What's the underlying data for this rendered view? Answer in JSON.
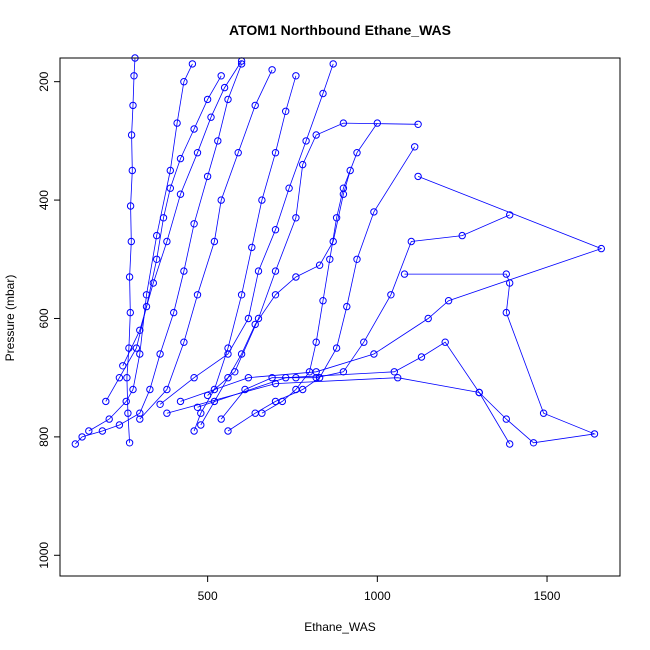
{
  "chart_data": {
    "type": "line",
    "title": "ATOM1 Northbound Ethane_WAS",
    "xlabel": "Ethane_WAS",
    "ylabel": "Pressure (mbar)",
    "xlim": [
      65,
      1715
    ],
    "ylim": [
      1035,
      160
    ],
    "y_reversed": true,
    "x_ticks": [
      500,
      1000,
      1500
    ],
    "y_ticks": [
      200,
      400,
      600,
      800,
      1000
    ],
    "x_tick_labels": [
      "500",
      "1000",
      "1500"
    ],
    "y_tick_labels": [
      "200",
      "400",
      "600",
      "800",
      "1000"
    ],
    "color": "#0000ff",
    "marker": "open-circle",
    "series": [
      {
        "values": [
          [
            270,
            810
          ],
          [
            265,
            760
          ],
          [
            262,
            700
          ],
          [
            268,
            650
          ],
          [
            272,
            590
          ],
          [
            270,
            530
          ],
          [
            275,
            470
          ],
          [
            273,
            410
          ],
          [
            278,
            350
          ],
          [
            276,
            290
          ],
          [
            280,
            240
          ],
          [
            283,
            190
          ],
          [
            286,
            160
          ]
        ]
      },
      {
        "values": [
          [
            150,
            790
          ],
          [
            210,
            770
          ],
          [
            260,
            740
          ],
          [
            280,
            720
          ],
          [
            300,
            660
          ],
          [
            320,
            560
          ],
          [
            350,
            460
          ],
          [
            390,
            350
          ],
          [
            410,
            270
          ],
          [
            430,
            200
          ],
          [
            455,
            170
          ]
        ]
      },
      {
        "values": [
          [
            460,
            790
          ],
          [
            480,
            760
          ],
          [
            520,
            720
          ],
          [
            560,
            650
          ],
          [
            600,
            560
          ],
          [
            630,
            480
          ],
          [
            660,
            400
          ],
          [
            700,
            320
          ],
          [
            730,
            250
          ],
          [
            760,
            190
          ]
        ]
      },
      {
        "values": [
          [
            540,
            770
          ],
          [
            610,
            720
          ],
          [
            690,
            700
          ],
          [
            760,
            700
          ],
          [
            820,
            700
          ],
          [
            900,
            690
          ],
          [
            960,
            640
          ],
          [
            1040,
            560
          ],
          [
            1100,
            470
          ],
          [
            1250,
            460
          ],
          [
            1390,
            425
          ]
        ]
      },
      {
        "values": [
          [
            380,
            760
          ],
          [
            700,
            710
          ],
          [
            1060,
            700
          ],
          [
            1300,
            725
          ],
          [
            1380,
            770
          ],
          [
            1460,
            810
          ],
          [
            1640,
            795
          ],
          [
            1490,
            760
          ],
          [
            1380,
            590
          ],
          [
            1390,
            540
          ],
          [
            1380,
            525
          ],
          [
            1080,
            525
          ]
        ]
      },
      {
        "values": [
          [
            420,
            740
          ],
          [
            620,
            700
          ],
          [
            820,
            690
          ],
          [
            990,
            660
          ],
          [
            1150,
            600
          ],
          [
            1210,
            570
          ],
          [
            1660,
            482
          ],
          [
            1120,
            360
          ]
        ]
      },
      {
        "values": [
          [
            470,
            750
          ],
          [
            730,
            700
          ],
          [
            1050,
            690
          ],
          [
            1130,
            665
          ],
          [
            1200,
            640
          ],
          [
            1300,
            725
          ],
          [
            1390,
            812
          ]
        ]
      },
      {
        "values": [
          [
            500,
            730
          ],
          [
            580,
            690
          ],
          [
            650,
            600
          ],
          [
            700,
            520
          ],
          [
            760,
            430
          ],
          [
            780,
            340
          ],
          [
            820,
            290
          ],
          [
            900,
            270
          ],
          [
            1120,
            272
          ]
        ]
      },
      {
        "values": [
          [
            300,
            770
          ],
          [
            380,
            720
          ],
          [
            430,
            640
          ],
          [
            470,
            560
          ],
          [
            520,
            470
          ],
          [
            540,
            400
          ],
          [
            590,
            320
          ],
          [
            640,
            240
          ],
          [
            690,
            180
          ]
        ]
      },
      {
        "values": [
          [
            360,
            745
          ],
          [
            460,
            700
          ],
          [
            560,
            660
          ],
          [
            620,
            600
          ],
          [
            650,
            520
          ],
          [
            700,
            450
          ],
          [
            740,
            380
          ],
          [
            790,
            300
          ],
          [
            840,
            220
          ],
          [
            870,
            170
          ]
        ]
      },
      {
        "values": [
          [
            110,
            812
          ],
          [
            130,
            800
          ],
          [
            190,
            790
          ],
          [
            240,
            780
          ],
          [
            300,
            760
          ],
          [
            330,
            720
          ],
          [
            360,
            660
          ],
          [
            400,
            590
          ],
          [
            430,
            520
          ],
          [
            460,
            440
          ],
          [
            500,
            360
          ],
          [
            530,
            300
          ],
          [
            560,
            230
          ],
          [
            600,
            170
          ]
        ]
      },
      {
        "values": [
          [
            560,
            790
          ],
          [
            640,
            760
          ],
          [
            700,
            740
          ],
          [
            780,
            720
          ],
          [
            830,
            700
          ],
          [
            880,
            650
          ],
          [
            910,
            580
          ],
          [
            940,
            500
          ],
          [
            990,
            420
          ],
          [
            1110,
            310
          ]
        ]
      },
      {
        "values": [
          [
            250,
            680
          ],
          [
            300,
            620
          ],
          [
            340,
            540
          ],
          [
            380,
            470
          ],
          [
            420,
            390
          ],
          [
            470,
            320
          ],
          [
            510,
            260
          ],
          [
            550,
            210
          ],
          [
            600,
            165
          ]
        ]
      },
      {
        "values": [
          [
            480,
            780
          ],
          [
            520,
            740
          ],
          [
            560,
            700
          ],
          [
            600,
            660
          ],
          [
            640,
            610
          ],
          [
            700,
            560
          ],
          [
            760,
            530
          ],
          [
            830,
            510
          ],
          [
            870,
            470
          ],
          [
            900,
            390
          ],
          [
            920,
            350
          ]
        ]
      },
      {
        "values": [
          [
            200,
            740
          ],
          [
            240,
            700
          ],
          [
            290,
            650
          ],
          [
            320,
            580
          ],
          [
            350,
            500
          ],
          [
            370,
            430
          ],
          [
            390,
            380
          ],
          [
            420,
            330
          ],
          [
            460,
            280
          ],
          [
            500,
            230
          ],
          [
            540,
            190
          ]
        ]
      },
      {
        "values": [
          [
            660,
            760
          ],
          [
            720,
            740
          ],
          [
            760,
            720
          ],
          [
            800,
            690
          ],
          [
            820,
            640
          ],
          [
            840,
            570
          ],
          [
            860,
            500
          ],
          [
            880,
            430
          ],
          [
            900,
            380
          ],
          [
            940,
            320
          ],
          [
            1000,
            270
          ]
        ]
      }
    ]
  }
}
